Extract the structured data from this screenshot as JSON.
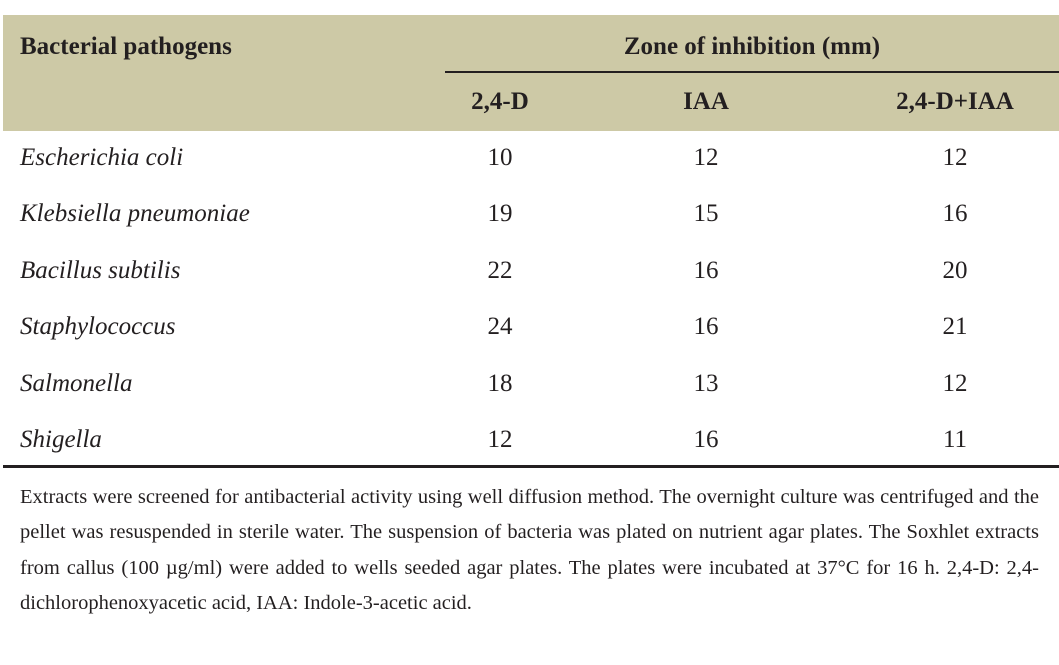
{
  "table": {
    "header": {
      "row_label": "Bacterial pathogens",
      "group": "Zone of inhibition (mm)",
      "columns": [
        "2,4-D",
        "IAA",
        "2,4-D+IAA"
      ]
    },
    "rows": [
      [
        "Escherichia coli",
        10,
        12,
        12
      ],
      [
        "Klebsiella pneumoniae",
        19,
        15,
        16
      ],
      [
        "Bacillus subtilis",
        22,
        16,
        20
      ],
      [
        "Staphylococcus",
        24,
        16,
        21
      ],
      [
        "Salmonella",
        18,
        13,
        12
      ],
      [
        "Shigella",
        12,
        16,
        11
      ]
    ],
    "footnote": "Extracts were screened for antibacterial activity using well diffusion method. The overnight culture was centrifuged and the pellet was resuspended in sterile water. The suspension of bacteria was plated on nutrient agar plates. The Soxhlet extracts from callus (100 µg/ml) were added to wells seeded agar plates. The plates were incubated at 37°C for 16 h. 2,4-D: 2,4-dichlorophenoxyacetic acid, IAA: Indole-3-acetic acid."
  }
}
